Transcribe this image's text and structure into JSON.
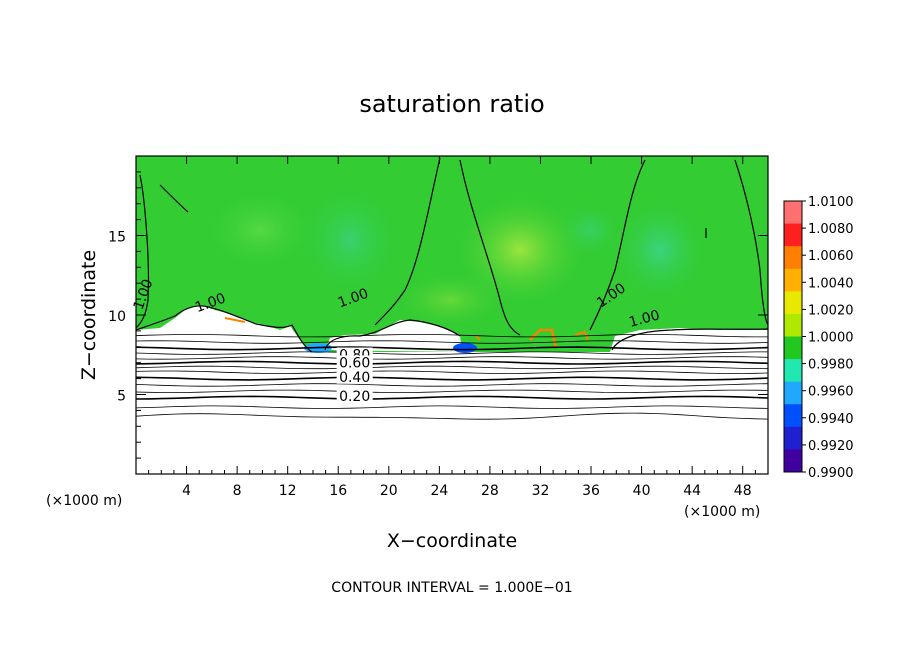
{
  "chart_data": {
    "type": "heatmap",
    "title": "saturation ratio",
    "xlabel": "X−coordinate",
    "ylabel": "Z−coordinate",
    "x_unit": "(×1000 m)",
    "x_unit_right": "(×1000 m)",
    "xlim": [
      0,
      50
    ],
    "ylim": [
      0,
      20
    ],
    "x_ticks": [
      4,
      8,
      12,
      16,
      20,
      24,
      28,
      32,
      36,
      40,
      44,
      48
    ],
    "y_ticks": [
      5,
      10,
      15
    ],
    "note": "CONTOUR INTERVAL = 1.000E−01",
    "contour_labels": [
      {
        "text": "1.00",
        "x": 0.9,
        "y": 11.2
      },
      {
        "text": "1.00",
        "x": 6.0,
        "y": 10.5
      },
      {
        "text": "1.00",
        "x": 17.3,
        "y": 10.8
      },
      {
        "text": "1.00",
        "x": 37.8,
        "y": 11.0
      },
      {
        "text": "1.00",
        "x": 40.3,
        "y": 9.5
      },
      {
        "text": "0.80",
        "x": 17.3,
        "y": 7.2
      },
      {
        "text": "0.60",
        "x": 17.3,
        "y": 6.7
      },
      {
        "text": "0.40",
        "x": 17.3,
        "y": 5.8
      },
      {
        "text": "0.20",
        "x": 17.3,
        "y": 4.6
      }
    ],
    "colorbar": {
      "min": 0.99,
      "max": 1.01,
      "levels": [
        "1.0100",
        "1.0080",
        "1.0060",
        "1.0040",
        "1.0020",
        "1.0000",
        "0.9980",
        "0.9960",
        "0.9940",
        "0.9920",
        "0.9900"
      ],
      "colors": [
        "#ff7070",
        "#ff2020",
        "#ff8000",
        "#ffb000",
        "#e8e800",
        "#b0e800",
        "#20c820",
        "#20e8b0",
        "#20a8ff",
        "#0050ff",
        "#2020d0",
        "#4000a0"
      ]
    },
    "colors": {
      "field": "#33cc33",
      "field_dry": "#ffffff",
      "contour": "#000000"
    }
  }
}
